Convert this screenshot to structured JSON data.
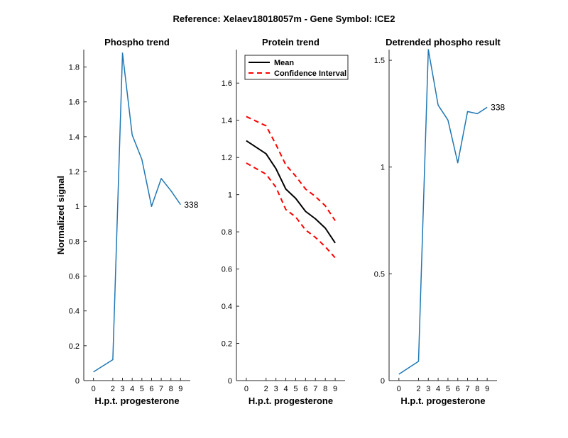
{
  "figure_title": "Reference:  Xelaev18018057m - Gene Symbol:  ICE2",
  "chart_data": [
    {
      "type": "line",
      "title": "Phospho trend",
      "xlabel": "H.p.t. progesterone",
      "ylabel": "Normalized signal",
      "x": [
        0,
        2,
        3,
        4,
        5,
        6,
        7,
        8,
        9
      ],
      "xticks": [
        0,
        2,
        3,
        4,
        5,
        6,
        7,
        8,
        9
      ],
      "ylim": [
        0,
        1.9
      ],
      "yticks": [
        "0",
        "0.2",
        "0.4",
        "0.6",
        "0.8",
        "1",
        "1.2",
        "1.4",
        "1.6",
        "1.8"
      ],
      "series": [
        {
          "values": [
            0.05,
            0.12,
            1.88,
            1.41,
            1.27,
            1.0,
            1.16,
            1.09,
            1.01
          ],
          "color": "#1f77b4"
        }
      ],
      "end_label": "338"
    },
    {
      "type": "line",
      "title": "Protein trend",
      "xlabel": "H.p.t. progesterone",
      "ylabel": "",
      "x": [
        0,
        2,
        3,
        4,
        5,
        6,
        7,
        8,
        9
      ],
      "xticks": [
        0,
        2,
        3,
        4,
        5,
        6,
        7,
        8,
        9
      ],
      "ylim": [
        0,
        1.78
      ],
      "yticks": [
        "0",
        "0.2",
        "0.4",
        "0.6",
        "0.8",
        "1",
        "1.2",
        "1.4",
        "1.6"
      ],
      "legend": {
        "placement": "top-left",
        "entries": [
          "Mean",
          "Confidence Interval"
        ]
      },
      "series": [
        {
          "name": "Mean",
          "values": [
            1.29,
            1.22,
            1.14,
            1.03,
            0.98,
            0.91,
            0.87,
            0.82,
            0.74
          ],
          "color": "#000000",
          "style": "solid"
        },
        {
          "name": "Confidence Interval",
          "values": [
            1.42,
            1.37,
            1.27,
            1.16,
            1.1,
            1.03,
            0.99,
            0.94,
            0.86
          ],
          "color": "#ff0000",
          "style": "dashed"
        },
        {
          "name": "Confidence Interval",
          "values": [
            1.17,
            1.11,
            1.04,
            0.92,
            0.88,
            0.81,
            0.77,
            0.72,
            0.66
          ],
          "color": "#ff0000",
          "style": "dashed"
        }
      ]
    },
    {
      "type": "line",
      "title": "Detrended phospho result",
      "xlabel": "H.p.t. progesterone",
      "ylabel": "",
      "x": [
        0,
        2,
        3,
        4,
        5,
        6,
        7,
        8,
        9
      ],
      "xticks": [
        0,
        2,
        3,
        4,
        5,
        6,
        7,
        8,
        9
      ],
      "ylim": [
        0,
        1.55
      ],
      "yticks": [
        "0",
        "0.5",
        "1",
        "1.5"
      ],
      "series": [
        {
          "values": [
            0.03,
            0.09,
            1.55,
            1.29,
            1.22,
            1.02,
            1.26,
            1.25,
            1.28
          ],
          "color": "#1f77b4"
        }
      ],
      "end_label": "338"
    }
  ]
}
